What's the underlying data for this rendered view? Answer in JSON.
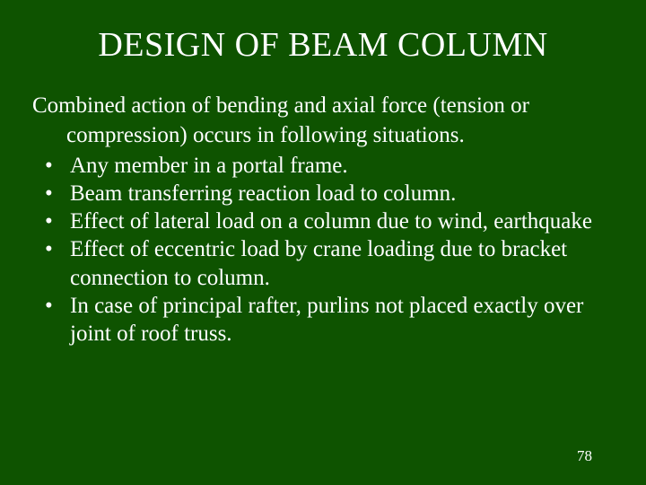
{
  "slide": {
    "title": "DESIGN OF BEAM COLUMN",
    "intro_line1": "Combined action of bending and axial force (tension or",
    "intro_line2": "compression) occurs in following situations.",
    "bullets": [
      " Any member in a portal frame.",
      "Beam transferring reaction load to column.",
      "Effect of lateral load on a column due to wind, earthquake",
      "Effect of eccentric load by crane loading due to bracket connection to column.",
      "In case of principal rafter, purlins not placed exactly over joint of roof truss."
    ],
    "page_number": "78",
    "background_color": "#0e5300",
    "text_color": "#ffffff",
    "title_fontsize": 38,
    "body_fontsize": 25,
    "pagenum_fontsize": 17,
    "font_family": "Times New Roman"
  }
}
